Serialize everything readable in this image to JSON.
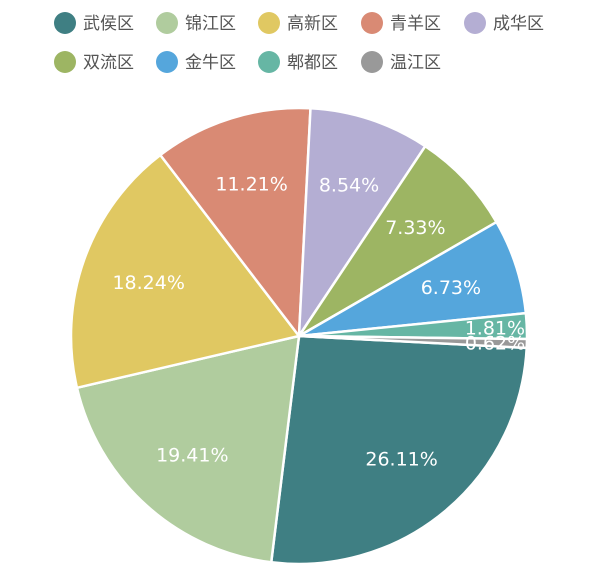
{
  "chart_data": {
    "type": "pie",
    "categories": [
      "武侯区",
      "锦江区",
      "高新区",
      "青羊区",
      "成华区",
      "双流区",
      "金牛区",
      "郫都区",
      "温江区"
    ],
    "values": [
      26.11,
      19.41,
      18.24,
      11.21,
      8.54,
      7.33,
      6.73,
      1.81,
      0.62
    ],
    "value_labels": [
      "26.11%",
      "19.41%",
      "18.24%",
      "11.21%",
      "8.54%",
      "7.33%",
      "6.73%",
      "1.81%",
      "0.62%"
    ],
    "colors": [
      "#3f7f83",
      "#b0cc9e",
      "#e0c862",
      "#d98a74",
      "#b4aed3",
      "#9db563",
      "#55a6dc",
      "#66b6a4",
      "#999999"
    ],
    "legend_position": "top",
    "start_direction": "clockwise",
    "title": "",
    "xlabel": "",
    "ylabel": ""
  }
}
